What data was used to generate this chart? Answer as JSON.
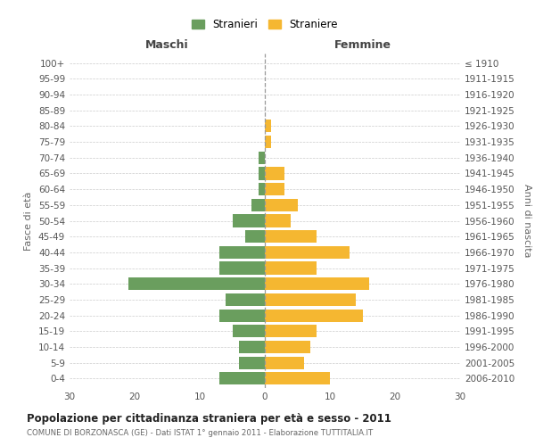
{
  "age_groups": [
    "0-4",
    "5-9",
    "10-14",
    "15-19",
    "20-24",
    "25-29",
    "30-34",
    "35-39",
    "40-44",
    "45-49",
    "50-54",
    "55-59",
    "60-64",
    "65-69",
    "70-74",
    "75-79",
    "80-84",
    "85-89",
    "90-94",
    "95-99",
    "100+"
  ],
  "birth_years": [
    "2006-2010",
    "2001-2005",
    "1996-2000",
    "1991-1995",
    "1986-1990",
    "1981-1985",
    "1976-1980",
    "1971-1975",
    "1966-1970",
    "1961-1965",
    "1956-1960",
    "1951-1955",
    "1946-1950",
    "1941-1945",
    "1936-1940",
    "1931-1935",
    "1926-1930",
    "1921-1925",
    "1916-1920",
    "1911-1915",
    "≤ 1910"
  ],
  "males": [
    7,
    4,
    4,
    5,
    7,
    6,
    21,
    7,
    7,
    3,
    5,
    2,
    1,
    1,
    1,
    0,
    0,
    0,
    0,
    0,
    0
  ],
  "females": [
    10,
    6,
    7,
    8,
    15,
    14,
    16,
    8,
    13,
    8,
    4,
    5,
    3,
    3,
    0,
    1,
    1,
    0,
    0,
    0,
    0
  ],
  "male_color": "#6a9e5e",
  "female_color": "#f5b731",
  "legend_male": "Stranieri",
  "legend_female": "Straniere",
  "xlabel_left": "Maschi",
  "xlabel_right": "Femmine",
  "ylabel_left": "Fasce di età",
  "ylabel_right": "Anni di nascita",
  "title": "Popolazione per cittadinanza straniera per età e sesso - 2011",
  "subtitle": "COMUNE DI BORZONASCA (GE) - Dati ISTAT 1° gennaio 2011 - Elaborazione TUTTITALIA.IT",
  "xlim": 30,
  "bg_color": "#ffffff",
  "grid_color": "#cccccc",
  "bar_height": 0.8
}
